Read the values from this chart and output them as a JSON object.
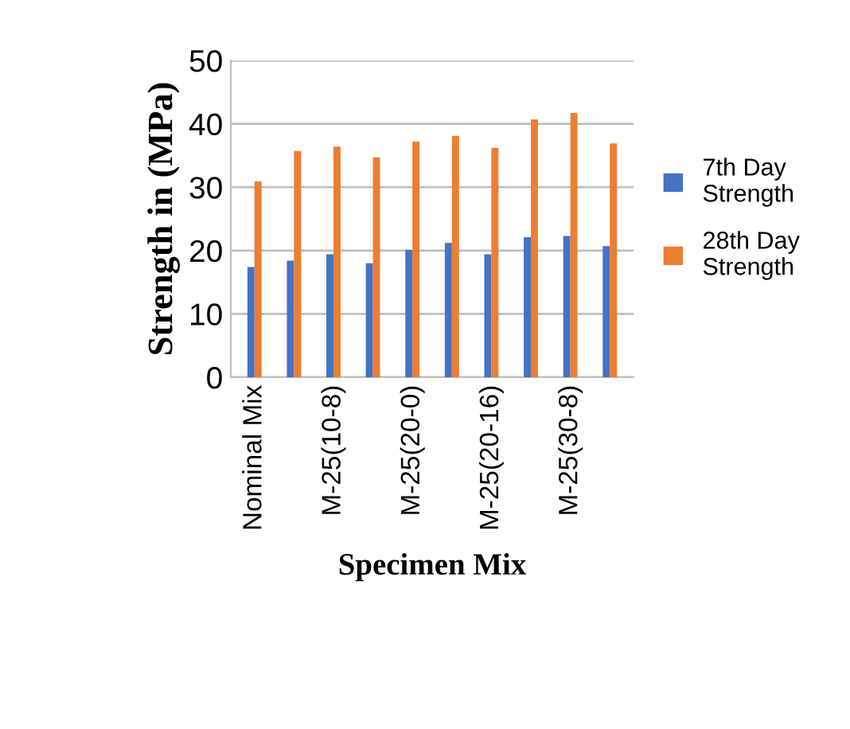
{
  "chart_data": {
    "type": "bar",
    "xlabel": "Specimen Mix",
    "ylabel": "Strength in (MPa)",
    "categories": [
      "Nominal Mix",
      null,
      "M-25(10-8)",
      null,
      "M-25(20-0)",
      null,
      "M-25(20-16)",
      null,
      "M-25(30-8)",
      null
    ],
    "series": [
      {
        "name": "7th Day Strength",
        "color": "#4472c4",
        "values": [
          17.4,
          18.4,
          19.4,
          18.0,
          20.1,
          21.2,
          19.4,
          22.1,
          22.3,
          20.7
        ]
      },
      {
        "name": "28th Day Strength",
        "color": "#ed7d31",
        "values": [
          30.9,
          35.7,
          36.4,
          34.7,
          37.2,
          38.1,
          36.2,
          40.7,
          41.7,
          36.9
        ]
      }
    ],
    "ylim": [
      0,
      50
    ],
    "yticks": [
      0,
      10,
      20,
      30,
      40,
      50
    ],
    "grid": "y",
    "legend": "right"
  }
}
